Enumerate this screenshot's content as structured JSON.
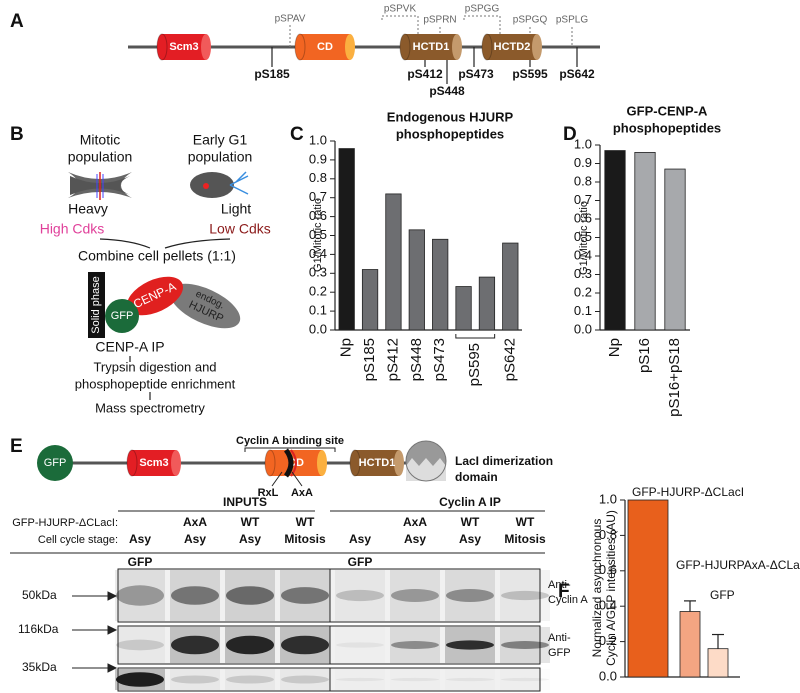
{
  "panel_a": {
    "label": "A",
    "domains": [
      "Scm3",
      "CD",
      "HCTD1",
      "HCTD2"
    ],
    "motifs": [
      "pSPAV",
      "pSPVK",
      "pSPRN",
      "pSPGG",
      "pSPGQ",
      "pSPLG"
    ],
    "sites": [
      "pS185",
      "pS412",
      "pS448",
      "pS473",
      "pS595",
      "pS642"
    ]
  },
  "panel_b": {
    "label": "B",
    "mitotic": [
      "Mitotic",
      "population"
    ],
    "g1": [
      "Early G1",
      "population"
    ],
    "heavy": "Heavy",
    "light": "Light",
    "high": "High Cdks",
    "low": "Low Cdks",
    "combine": "Combine cell pellets (1:1)",
    "solid": "Solid phase",
    "gfp": "GFP",
    "cenpa": "CENP-A",
    "hjurp": [
      "endog.",
      "HJURP"
    ],
    "ip": "CENP-A IP",
    "digest": [
      "Trypsin digestion and",
      "phosphopeptide enrichment"
    ],
    "ms": "Mass spectrometry"
  },
  "chart_data": [
    {
      "type": "bar",
      "panel": "C",
      "title": [
        "Endogenous HJURP",
        "phosphopeptides"
      ],
      "ylabel": "G1/Mitotic ratio",
      "categories": [
        "Np",
        "pS185",
        "pS412",
        "pS448",
        "pS473",
        "pS595",
        null,
        "pS642"
      ],
      "values": [
        0.96,
        0.32,
        0.72,
        0.53,
        0.48,
        0.23,
        0.28,
        0.46
      ],
      "colors": [
        "#1a1a1a",
        "#6d6e71",
        "#6d6e71",
        "#6d6e71",
        "#6d6e71",
        "#6d6e71",
        "#6d6e71",
        "#6d6e71"
      ],
      "ylim": [
        0,
        1
      ],
      "yticks": [
        {
          "value": 0,
          "label": "0.0"
        },
        0.1,
        0.2,
        0.3,
        0.4,
        0.5,
        0.6,
        0.7,
        0.8,
        0.9,
        {
          "value": 1,
          "label": "1.0"
        }
      ]
    },
    {
      "type": "bar",
      "panel": "D",
      "title": [
        "GFP-CENP-A",
        "phosphopeptides"
      ],
      "ylabel": "G1/Mitotic ratio",
      "categories": [
        "Np",
        "pS16",
        "pS16+pS18"
      ],
      "values": [
        0.97,
        0.96,
        0.87
      ],
      "colors": [
        "#1a1a1a",
        "#a7a9ac",
        "#a7a9ac"
      ],
      "ylim": [
        0,
        1
      ],
      "yticks": [
        {
          "value": 0,
          "label": "0.0"
        },
        0.1,
        0.2,
        0.3,
        0.4,
        0.5,
        0.6,
        0.7,
        0.8,
        0.9,
        {
          "value": 1,
          "label": "1.0"
        }
      ]
    },
    {
      "type": "bar",
      "panel": "F",
      "ylabel": [
        "Normalized asynchronous",
        "Cyclin A/GFP intensities (AU)"
      ],
      "values": [
        1.0,
        0.37,
        0.16
      ],
      "errors": [
        null,
        0.06,
        0.08
      ],
      "colors": [
        "#e8601c",
        "#f4a582",
        "#fddbc7"
      ],
      "annotations": [
        "GFP-HJURP-ΔCLacI",
        "GFP-HJURPAxA-ΔCLacI",
        "GFP"
      ],
      "ylim": [
        0,
        1
      ],
      "yticks": [
        {
          "value": 0,
          "label": "0.0"
        },
        0.2,
        0.4,
        0.6,
        0.8,
        {
          "value": 1,
          "label": "1.0"
        }
      ]
    }
  ],
  "panel_e": {
    "label": "E",
    "domains": [
      "GFP",
      "Scm3",
      "CD",
      "HCTD1"
    ],
    "binding_site": "Cyclin A binding site",
    "motifs": [
      "RxL",
      "AxA"
    ],
    "lacI": [
      "LacI dimerization",
      "domain"
    ],
    "groups": [
      "INPUTS",
      "Cyclin A IP"
    ],
    "row_labels": [
      "GFP-HJURP-ΔCLacI:",
      "Cell cycle stage:"
    ],
    "constructs": [
      null,
      "AxA",
      "WT",
      "WT",
      null,
      "AxA",
      "WT",
      "WT"
    ],
    "stages": [
      "Asy",
      "Asy",
      "Asy",
      "Mitosis",
      "Asy",
      "Asy",
      "Asy",
      "Mitosis"
    ],
    "lane_labels": [
      "GFP",
      "GFP"
    ],
    "markers": [
      "50kDa",
      "116kDa",
      "35kDa"
    ],
    "antibodies": [
      [
        "Anti-",
        "Cyclin A"
      ],
      [
        "Anti-",
        "GFP"
      ]
    ]
  }
}
